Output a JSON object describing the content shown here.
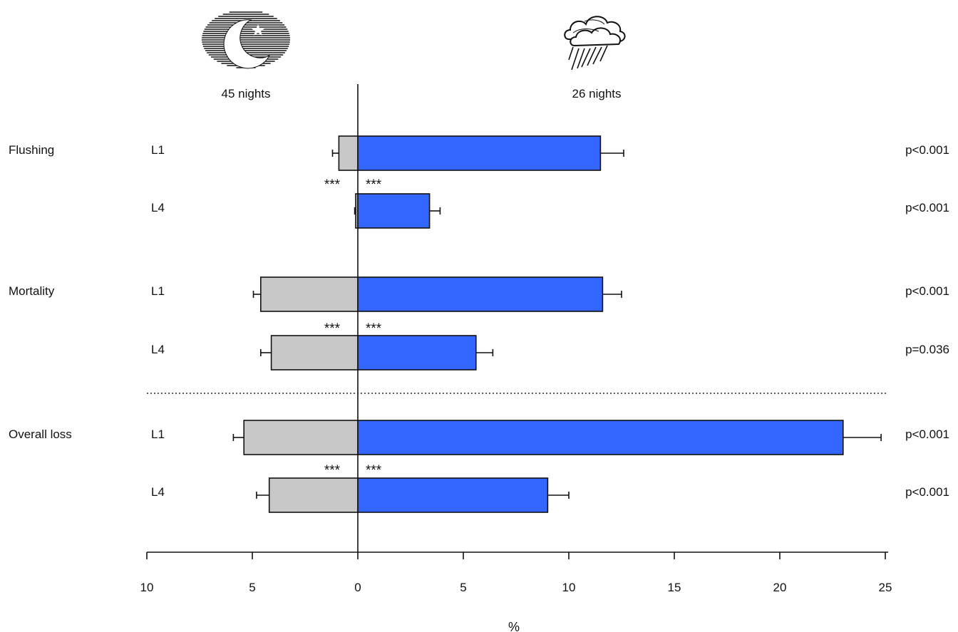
{
  "chart_data": {
    "type": "bar",
    "orientation": "horizontal-diverging",
    "header_left": "45 nights",
    "header_right": "26 nights",
    "header_left_icon": "moon-star-icon",
    "header_right_icon": "rain-cloud-icon",
    "xlabel": "%",
    "xlim_left": [
      10,
      0
    ],
    "xlim_right": [
      0,
      25
    ],
    "x_ticks_left": [
      "10",
      "5"
    ],
    "x_ticks_right": [
      "0",
      "5",
      "10",
      "15",
      "20",
      "25"
    ],
    "colors": {
      "left": "#c8c8c8",
      "right": "#3366ff"
    },
    "groups": [
      {
        "name": "Flushing",
        "rows": [
          {
            "label": "L1",
            "left": 0.9,
            "left_err": 0.3,
            "right": 11.5,
            "right_err": 1.1,
            "p": "p<0.001"
          },
          {
            "label": "L4",
            "left": 0.1,
            "left_err": 0.05,
            "right": 3.4,
            "right_err": 0.5,
            "p": "p<0.001"
          }
        ],
        "sig_left": "***",
        "sig_right": "***"
      },
      {
        "name": "Mortality",
        "rows": [
          {
            "label": "L1",
            "left": 4.6,
            "left_err": 0.35,
            "right": 11.6,
            "right_err": 0.9,
            "p": "p<0.001"
          },
          {
            "label": "L4",
            "left": 4.1,
            "left_err": 0.5,
            "right": 5.6,
            "right_err": 0.8,
            "p": "p=0.036"
          }
        ],
        "sig_left": "***",
        "sig_right": "***"
      },
      {
        "name": "Overall loss",
        "rows": [
          {
            "label": "L1",
            "left": 5.4,
            "left_err": 0.5,
            "right": 23.0,
            "right_err": 1.8,
            "p": "p<0.001"
          },
          {
            "label": "L4",
            "left": 4.2,
            "left_err": 0.6,
            "right": 9.0,
            "right_err": 1.0,
            "p": "p<0.001"
          }
        ],
        "sig_left": "***",
        "sig_right": "***"
      }
    ]
  }
}
